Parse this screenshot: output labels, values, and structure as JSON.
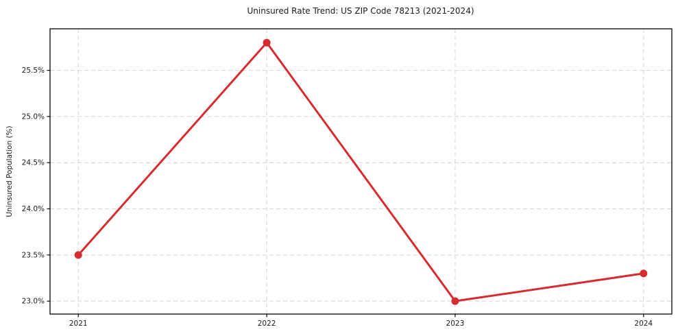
{
  "chart_data": {
    "type": "line",
    "title": "Uninsured Rate Trend: US ZIP Code 78213 (2021-2024)",
    "xlabel": "",
    "ylabel": "Uninsured Population (%)",
    "x": [
      2021,
      2022,
      2023,
      2024
    ],
    "x_tick_labels": [
      "2021",
      "2022",
      "2023",
      "2024"
    ],
    "series": [
      {
        "values": [
          23.5,
          25.8,
          23.0,
          23.3
        ],
        "color": "#d62b2f",
        "marker": "circle",
        "line_width": 3,
        "marker_size": 5.5
      }
    ],
    "y_ticks": [
      23.0,
      23.5,
      24.0,
      24.5,
      25.0,
      25.5
    ],
    "y_tick_labels": [
      "23.0%",
      "23.5%",
      "24.0%",
      "24.5%",
      "25.0%",
      "25.5%"
    ],
    "xlim": [
      2020.85,
      2024.15
    ],
    "ylim": [
      22.86,
      25.95
    ],
    "grid": "both",
    "grid_style": "dashed",
    "grid_color": "#d4d4d4",
    "axis_color": "#000000",
    "tick_label_color": "#1a1a1a",
    "legend": false
  }
}
